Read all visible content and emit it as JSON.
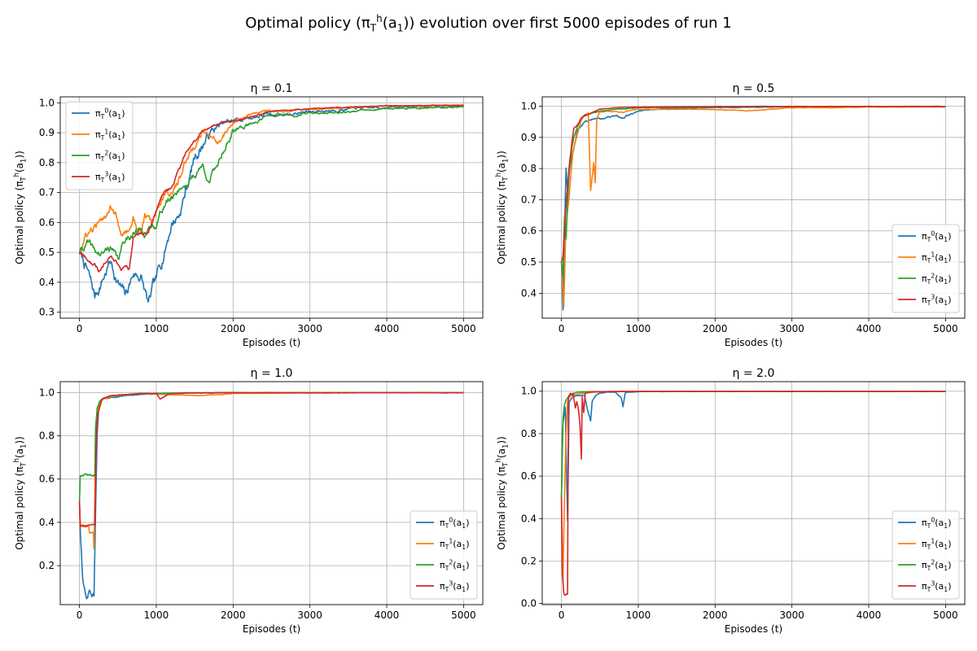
{
  "figure_title": "Optimal policy (π_T^h(a_1)) evolution over first 5000 episodes of run 1",
  "colors": {
    "h0": "#1f77b4",
    "h1": "#ff7f0e",
    "h2": "#2ca02c",
    "h3": "#d62728",
    "grid": "#b0b0b0"
  },
  "chart_data": [
    {
      "type": "line",
      "title": "η = 0.1",
      "xlabel": "Episodes (t)",
      "ylabel": "Optimal policy (π_T^h(a_1))",
      "xlim": [
        -250,
        5250
      ],
      "ylim": [
        0.28,
        1.02
      ],
      "xticks": [
        0,
        1000,
        2000,
        3000,
        4000,
        5000
      ],
      "yticks": [
        0.3,
        0.4,
        0.5,
        0.6,
        0.7,
        0.8,
        0.9,
        1.0
      ],
      "ytick_labels": [
        "0.3",
        "0.4",
        "0.5",
        "0.6",
        "0.7",
        "0.8",
        "0.9",
        "1.0"
      ],
      "grid": true,
      "legend_position": "upper-left",
      "series": [
        {
          "name": "π_T^0(a_1)",
          "color": "#1f77b4",
          "noise": 0.012,
          "x": [
            0,
            100,
            200,
            300,
            400,
            500,
            600,
            700,
            800,
            900,
            950,
            1000,
            1100,
            1200,
            1300,
            1400,
            1500,
            1600,
            1700,
            1800,
            1900,
            2000,
            2200,
            2400,
            2600,
            2800,
            3000,
            3500,
            4000,
            4500,
            5000
          ],
          "y": [
            0.5,
            0.44,
            0.35,
            0.41,
            0.47,
            0.4,
            0.35,
            0.43,
            0.42,
            0.32,
            0.37,
            0.4,
            0.5,
            0.6,
            0.63,
            0.72,
            0.82,
            0.86,
            0.9,
            0.92,
            0.93,
            0.94,
            0.95,
            0.96,
            0.96,
            0.965,
            0.97,
            0.98,
            0.985,
            0.988,
            0.99
          ]
        },
        {
          "name": "π_T^1(a_1)",
          "color": "#ff7f0e",
          "noise": 0.008,
          "x": [
            0,
            80,
            150,
            200,
            300,
            400,
            430,
            500,
            550,
            650,
            700,
            750,
            800,
            850,
            950,
            1000,
            1100,
            1200,
            1300,
            1400,
            1500,
            1600,
            1700,
            1800,
            1900,
            2000,
            2200,
            2400,
            2600,
            3000,
            3500,
            4000,
            4500,
            5000
          ],
          "y": [
            0.5,
            0.55,
            0.57,
            0.58,
            0.6,
            0.66,
            0.66,
            0.62,
            0.56,
            0.58,
            0.62,
            0.58,
            0.56,
            0.62,
            0.6,
            0.64,
            0.7,
            0.7,
            0.74,
            0.82,
            0.86,
            0.9,
            0.88,
            0.87,
            0.9,
            0.93,
            0.96,
            0.97,
            0.97,
            0.98,
            0.985,
            0.988,
            0.99,
            0.992
          ]
        },
        {
          "name": "π_T^2(a_1)",
          "color": "#2ca02c",
          "noise": 0.008,
          "x": [
            0,
            100,
            200,
            300,
            400,
            500,
            600,
            700,
            800,
            900,
            1000,
            1100,
            1200,
            1300,
            1400,
            1500,
            1600,
            1700,
            1800,
            1900,
            2000,
            2200,
            2400,
            2600,
            2800,
            3000,
            3500,
            4000,
            4500,
            5000
          ],
          "y": [
            0.5,
            0.53,
            0.5,
            0.49,
            0.52,
            0.47,
            0.55,
            0.57,
            0.57,
            0.57,
            0.6,
            0.66,
            0.68,
            0.72,
            0.73,
            0.76,
            0.79,
            0.74,
            0.8,
            0.86,
            0.9,
            0.93,
            0.95,
            0.96,
            0.96,
            0.965,
            0.97,
            0.98,
            0.983,
            0.985
          ]
        },
        {
          "name": "π_T^3(a_1)",
          "color": "#d62728",
          "noise": 0.004,
          "x": [
            0,
            100,
            200,
            250,
            350,
            400,
            450,
            550,
            650,
            700,
            800,
            900,
            1000,
            1100,
            1200,
            1300,
            1400,
            1500,
            1600,
            1700,
            1800,
            1900,
            2000,
            2200,
            2500,
            3000,
            3500,
            4000,
            5000
          ],
          "y": [
            0.5,
            0.48,
            0.46,
            0.44,
            0.48,
            0.5,
            0.48,
            0.45,
            0.44,
            0.55,
            0.56,
            0.57,
            0.65,
            0.7,
            0.72,
            0.78,
            0.84,
            0.87,
            0.9,
            0.92,
            0.93,
            0.94,
            0.94,
            0.95,
            0.97,
            0.98,
            0.985,
            0.99,
            0.992
          ]
        }
      ]
    },
    {
      "type": "line",
      "title": "η = 0.5",
      "xlabel": "Episodes (t)",
      "ylabel": "Optimal policy (π_T^h(a_1))",
      "xlim": [
        -250,
        5250
      ],
      "ylim": [
        0.32,
        1.03
      ],
      "xticks": [
        0,
        1000,
        2000,
        3000,
        4000,
        5000
      ],
      "yticks": [
        0.4,
        0.5,
        0.6,
        0.7,
        0.8,
        0.9,
        1.0
      ],
      "ytick_labels": [
        "0.4",
        "0.5",
        "0.6",
        "0.7",
        "0.8",
        "0.9",
        "1.0"
      ],
      "grid": true,
      "legend_position": "lower-right",
      "series": [
        {
          "name": "π_T^0(a_1)",
          "color": "#1f77b4",
          "noise": 0.006,
          "x": [
            0,
            20,
            40,
            60,
            80,
            100,
            150,
            200,
            250,
            300,
            400,
            500,
            600,
            700,
            800,
            900,
            1000,
            1200,
            1500,
            2000,
            3000,
            4000,
            5000
          ],
          "y": [
            0.5,
            0.34,
            0.6,
            0.8,
            0.72,
            0.78,
            0.85,
            0.92,
            0.94,
            0.95,
            0.96,
            0.96,
            0.965,
            0.97,
            0.96,
            0.975,
            0.985,
            0.99,
            0.993,
            0.996,
            0.998,
            0.999,
            0.999
          ]
        },
        {
          "name": "π_T^1(a_1)",
          "color": "#ff7f0e",
          "noise": 0.004,
          "x": [
            0,
            30,
            60,
            100,
            150,
            200,
            250,
            300,
            350,
            380,
            400,
            420,
            440,
            460,
            500,
            600,
            800,
            1000,
            1500,
            2000,
            2400,
            3000,
            3500,
            4000,
            5000
          ],
          "y": [
            0.5,
            0.35,
            0.62,
            0.7,
            0.85,
            0.9,
            0.95,
            0.97,
            0.975,
            0.73,
            0.78,
            0.82,
            0.75,
            0.96,
            0.98,
            0.985,
            0.98,
            0.99,
            0.99,
            0.99,
            0.985,
            0.995,
            0.995,
            0.997,
            0.998
          ]
        },
        {
          "name": "π_T^2(a_1)",
          "color": "#2ca02c",
          "noise": 0.004,
          "x": [
            0,
            20,
            40,
            60,
            80,
            100,
            130,
            160,
            200,
            250,
            300,
            400,
            500,
            700,
            1000,
            2000,
            3000,
            5000
          ],
          "y": [
            0.5,
            0.45,
            0.65,
            0.58,
            0.7,
            0.78,
            0.86,
            0.9,
            0.93,
            0.96,
            0.97,
            0.98,
            0.985,
            0.99,
            0.995,
            0.998,
            0.999,
            0.999
          ]
        },
        {
          "name": "π_T^3(a_1)",
          "color": "#d62728",
          "noise": 0.003,
          "x": [
            0,
            20,
            40,
            60,
            80,
            100,
            130,
            160,
            200,
            250,
            300,
            400,
            500,
            700,
            1000,
            2000,
            3000,
            5000
          ],
          "y": [
            0.5,
            0.52,
            0.6,
            0.68,
            0.74,
            0.8,
            0.87,
            0.93,
            0.94,
            0.96,
            0.97,
            0.98,
            0.99,
            0.995,
            0.997,
            0.999,
            0.999,
            0.999
          ]
        }
      ]
    },
    {
      "type": "line",
      "title": "η = 1.0",
      "xlabel": "Episodes (t)",
      "ylabel": "Optimal policy (π_T^h(a_1))",
      "xlim": [
        -250,
        5250
      ],
      "ylim": [
        0.02,
        1.05
      ],
      "xticks": [
        0,
        1000,
        2000,
        3000,
        4000,
        5000
      ],
      "yticks": [
        0.2,
        0.4,
        0.6,
        0.8,
        1.0
      ],
      "ytick_labels": [
        "0.2",
        "0.4",
        "0.6",
        "0.8",
        "1.0"
      ],
      "grid": true,
      "legend_position": "lower-right",
      "series": [
        {
          "name": "π_T^0(a_1)",
          "color": "#1f77b4",
          "noise": 0.01,
          "x": [
            0,
            20,
            40,
            60,
            80,
            100,
            130,
            160,
            190,
            210,
            230,
            250,
            280,
            320,
            400,
            500,
            600,
            700,
            800,
            1000,
            1500,
            2000,
            3000,
            5000
          ],
          "y": [
            0.5,
            0.3,
            0.15,
            0.1,
            0.08,
            0.06,
            0.09,
            0.07,
            0.06,
            0.45,
            0.8,
            0.92,
            0.96,
            0.97,
            0.98,
            0.98,
            0.985,
            0.99,
            0.99,
            0.995,
            0.998,
            0.999,
            0.999,
            0.999
          ]
        },
        {
          "name": "π_T^1(a_1)",
          "color": "#ff7f0e",
          "noise": 0.004,
          "x": [
            0,
            10,
            120,
            130,
            180,
            190,
            210,
            230,
            260,
            300,
            400,
            600,
            800,
            1200,
            1600,
            2000,
            3000,
            5000
          ],
          "y": [
            0.5,
            0.38,
            0.38,
            0.35,
            0.35,
            0.28,
            0.76,
            0.9,
            0.95,
            0.97,
            0.98,
            0.99,
            0.995,
            0.99,
            0.985,
            0.995,
            0.998,
            0.999
          ]
        },
        {
          "name": "π_T^2(a_1)",
          "color": "#2ca02c",
          "noise": 0.004,
          "x": [
            0,
            10,
            200,
            210,
            230,
            260,
            300,
            400,
            600,
            800,
            1000,
            1500,
            2000,
            3000,
            5000
          ],
          "y": [
            0.5,
            0.62,
            0.62,
            0.85,
            0.93,
            0.96,
            0.97,
            0.985,
            0.99,
            0.995,
            0.995,
            0.998,
            0.999,
            0.999,
            0.999
          ]
        },
        {
          "name": "π_T^3(a_1)",
          "color": "#d62728",
          "noise": 0.003,
          "x": [
            0,
            10,
            200,
            220,
            240,
            280,
            300,
            400,
            600,
            800,
            1000,
            1050,
            1100,
            1150,
            1200,
            1500,
            2000,
            3000,
            5000
          ],
          "y": [
            0.5,
            0.38,
            0.38,
            0.8,
            0.9,
            0.95,
            0.97,
            0.985,
            0.99,
            0.995,
            0.995,
            0.97,
            0.98,
            0.99,
            0.995,
            0.998,
            0.999,
            0.999,
            0.999
          ]
        }
      ]
    },
    {
      "type": "line",
      "title": "η = 2.0",
      "xlabel": "Episodes (t)",
      "ylabel": "Optimal policy (π_T^h(a_1))",
      "xlim": [
        -250,
        5250
      ],
      "ylim": [
        -0.005,
        1.045
      ],
      "xticks": [
        0,
        1000,
        2000,
        3000,
        4000,
        5000
      ],
      "yticks": [
        0.0,
        0.2,
        0.4,
        0.6,
        0.8,
        1.0
      ],
      "ytick_labels": [
        "0.0",
        "0.2",
        "0.4",
        "0.6",
        "0.8",
        "1.0"
      ],
      "grid": true,
      "legend_position": "lower-right",
      "series": [
        {
          "name": "π_T^0(a_1)",
          "color": "#1f77b4",
          "noise": 0.004,
          "x": [
            0,
            20,
            50,
            80,
            100,
            130,
            200,
            300,
            350,
            380,
            400,
            450,
            500,
            600,
            700,
            780,
            800,
            830,
            850,
            900,
            1000,
            1500,
            2000,
            3000,
            5000
          ],
          "y": [
            0.5,
            0.85,
            0.92,
            0.39,
            0.95,
            0.97,
            0.98,
            0.98,
            0.9,
            0.86,
            0.95,
            0.98,
            0.99,
            0.995,
            0.995,
            0.97,
            0.93,
            0.99,
            0.995,
            0.995,
            0.998,
            0.999,
            0.999,
            0.999,
            0.999
          ]
        },
        {
          "name": "π_T^1(a_1)",
          "color": "#ff7f0e",
          "noise": 0.003,
          "x": [
            0,
            20,
            40,
            60,
            80,
            100,
            130,
            180,
            250,
            300,
            400,
            500,
            700,
            1000,
            2000,
            5000
          ],
          "y": [
            0.5,
            0.1,
            0.5,
            0.8,
            0.95,
            0.97,
            0.98,
            0.985,
            0.99,
            0.99,
            0.995,
            0.997,
            0.998,
            0.999,
            0.999,
            0.999
          ]
        },
        {
          "name": "π_T^2(a_1)",
          "color": "#2ca02c",
          "noise": 0.003,
          "x": [
            0,
            10,
            20,
            40,
            60,
            80,
            100,
            150,
            200,
            300,
            500,
            1000,
            5000
          ],
          "y": [
            0.5,
            0.78,
            0.88,
            0.94,
            0.96,
            0.97,
            0.98,
            0.99,
            0.995,
            0.997,
            0.998,
            0.999,
            0.999
          ]
        },
        {
          "name": "π_T^3(a_1)",
          "color": "#d62728",
          "noise": 0.003,
          "x": [
            0,
            10,
            20,
            30,
            40,
            60,
            80,
            90,
            100,
            120,
            140,
            150,
            180,
            200,
            220,
            240,
            260,
            270,
            290,
            310,
            350,
            400,
            600,
            1000,
            5000
          ],
          "y": [
            0.5,
            0.15,
            0.1,
            0.05,
            0.045,
            0.045,
            0.045,
            0.96,
            0.98,
            0.99,
            0.98,
            0.99,
            0.92,
            0.95,
            0.92,
            0.85,
            0.68,
            0.97,
            0.9,
            0.99,
            0.995,
            0.997,
            0.998,
            0.999,
            0.999
          ]
        }
      ]
    }
  ]
}
